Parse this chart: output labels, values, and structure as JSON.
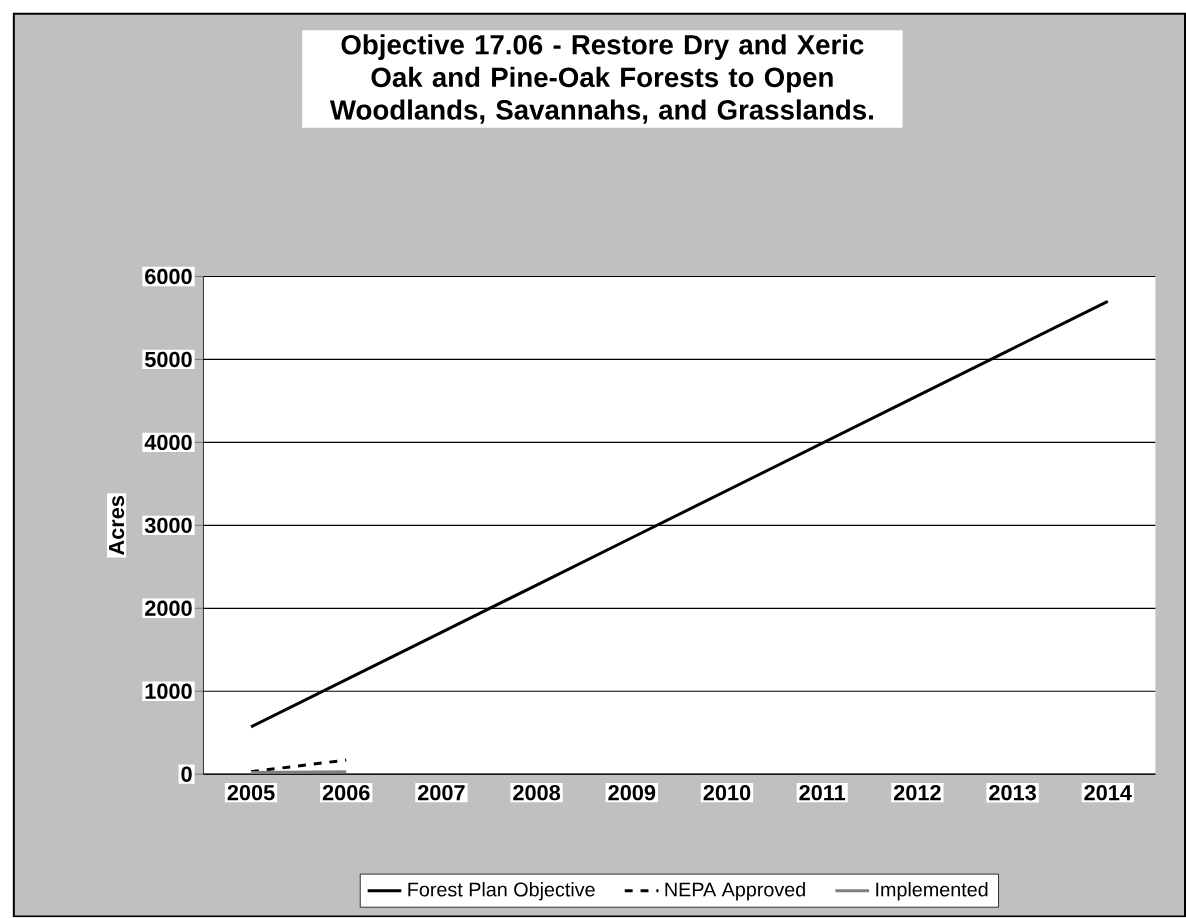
{
  "chart_data": {
    "type": "line",
    "title": "Objective 17.06 - Restore Dry and Xeric Oak and Pine-Oak Forests to Open  Woodlands, Savannahs, and Grasslands.",
    "ylabel": "Acres",
    "categories": [
      "2005",
      "2006",
      "2007",
      "2008",
      "2009",
      "2010",
      "2011",
      "2012",
      "2013",
      "2014"
    ],
    "series": [
      {
        "name": "Forest Plan Objective",
        "color": "#000000",
        "line_style": "solid",
        "values": [
          570,
          1140,
          1710,
          2280,
          2850,
          3420,
          3990,
          4560,
          5130,
          5700
        ]
      },
      {
        "name": "NEPA Approved",
        "color": "#000000",
        "line_style": "dashed",
        "values": [
          30,
          170,
          null,
          null,
          null,
          null,
          null,
          null,
          null,
          null
        ]
      },
      {
        "name": "Implemented",
        "color": "#808080",
        "line_style": "solid",
        "values": [
          20,
          30,
          null,
          null,
          null,
          null,
          null,
          null,
          null,
          null
        ]
      }
    ],
    "ylim": [
      0,
      6000
    ],
    "yticks": [
      0,
      1000,
      2000,
      3000,
      4000,
      5000,
      6000
    ],
    "grid": "y",
    "legend": "bottom",
    "marker": "none"
  }
}
